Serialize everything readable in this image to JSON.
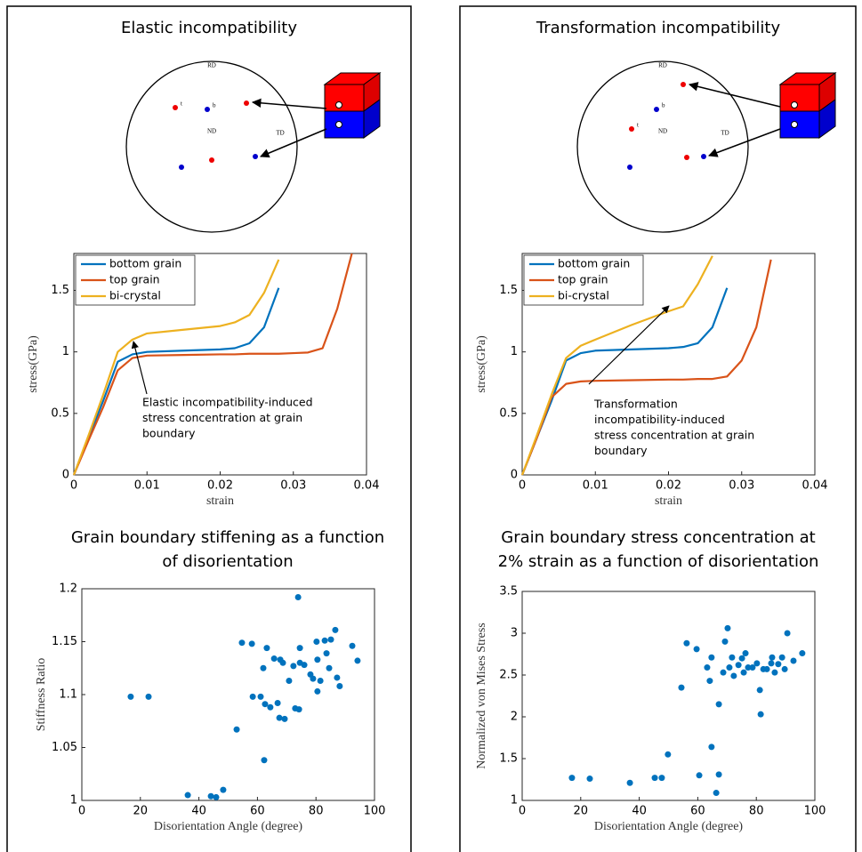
{
  "panels": [
    {
      "title": "Elastic incompatibility",
      "pole_figure": {
        "rd": "RD",
        "nd": "ND",
        "td": "TD",
        "bottom_label": "b",
        "top_label": "t"
      }
    },
    {
      "title": "Transformation incompatibility",
      "pole_figure": {
        "rd": "RD",
        "nd": "ND",
        "td": "TD",
        "bottom_label": "b",
        "top_label": "t"
      }
    }
  ],
  "chart_data": [
    {
      "type": "line",
      "xlabel": "strain",
      "ylabel": "stress(GPa)",
      "legend": "upper left",
      "xlim": [
        0,
        0.04
      ],
      "ylim": [
        0,
        1.8
      ],
      "xticks": [
        0,
        0.01,
        0.02,
        0.03,
        0.04
      ],
      "yticks": [
        0,
        0.5,
        1,
        1.5
      ],
      "x": [
        0,
        0.002,
        0.004,
        0.006,
        0.008,
        0.01,
        0.015,
        0.02,
        0.022,
        0.024,
        0.026,
        0.028,
        0.03,
        0.032,
        0.034,
        0.036,
        0.038
      ],
      "series": [
        {
          "name": "bottom grain",
          "color": "#0072BD",
          "values": [
            0,
            0.3,
            0.6,
            0.92,
            0.98,
            1.0,
            1.01,
            1.02,
            1.03,
            1.07,
            1.2,
            1.52,
            null,
            null,
            null,
            null,
            null
          ]
        },
        {
          "name": "top grain",
          "color": "#D95319",
          "values": [
            0,
            0.28,
            0.55,
            0.85,
            0.95,
            0.97,
            0.975,
            0.98,
            0.98,
            0.985,
            0.985,
            0.985,
            0.99,
            0.995,
            1.03,
            1.35,
            1.8
          ]
        },
        {
          "name": "bi-crystal",
          "color": "#EDB120",
          "values": [
            0,
            0.32,
            0.65,
            1.0,
            1.1,
            1.15,
            1.18,
            1.21,
            1.24,
            1.3,
            1.48,
            1.75,
            null,
            null,
            null,
            null,
            null
          ]
        }
      ],
      "annotation": [
        "Elastic incompatibility-induced",
        "stress concentration at grain",
        "boundary"
      ]
    },
    {
      "type": "scatter",
      "title": [
        "Grain boundary stiffening as a function",
        "of disorientation"
      ],
      "xlabel": "Disorientation Angle (degree)",
      "ylabel": "Stiffness Ratio",
      "color": "#0072BD",
      "xlim": [
        0,
        100
      ],
      "ylim": [
        1,
        1.2
      ],
      "xticks": [
        0,
        20,
        40,
        60,
        80,
        100
      ],
      "yticks": [
        1,
        1.05,
        1.1,
        1.15,
        1.2
      ],
      "x": [
        16.7,
        22.8,
        36.2,
        44.1,
        45.9,
        48.3,
        52.9,
        54.7,
        58.1,
        58.4,
        61.1,
        62.0,
        62.3,
        62.6,
        63.2,
        64.4,
        65.7,
        66.9,
        67.5,
        67.8,
        68.7,
        69.3,
        70.8,
        72.3,
        72.9,
        74.2,
        74.5,
        73.9,
        74.5,
        76.0,
        78.1,
        79.0,
        80.2,
        80.5,
        81.5,
        80.5,
        83.0,
        83.6,
        85.1,
        84.5,
        86.6,
        87.2,
        88.1,
        92.4,
        94.2
      ],
      "values": [
        1.098,
        1.098,
        1.005,
        1.004,
        1.003,
        1.01,
        1.067,
        1.149,
        1.148,
        1.098,
        1.098,
        1.125,
        1.038,
        1.091,
        1.144,
        1.088,
        1.134,
        1.092,
        1.078,
        1.133,
        1.13,
        1.077,
        1.113,
        1.127,
        1.087,
        1.086,
        1.13,
        1.192,
        1.144,
        1.128,
        1.119,
        1.115,
        1.15,
        1.133,
        1.113,
        1.103,
        1.151,
        1.139,
        1.152,
        1.125,
        1.161,
        1.116,
        1.108,
        1.146,
        1.132
      ]
    },
    {
      "type": "line",
      "xlabel": "strain",
      "ylabel": "stress(GPa)",
      "legend": "upper left",
      "xlim": [
        0,
        0.04
      ],
      "ylim": [
        0,
        1.8
      ],
      "xticks": [
        0,
        0.01,
        0.02,
        0.03,
        0.04
      ],
      "yticks": [
        0,
        0.5,
        1,
        1.5
      ],
      "x": [
        0,
        0.002,
        0.004,
        0.006,
        0.008,
        0.01,
        0.015,
        0.02,
        0.022,
        0.024,
        0.026,
        0.028,
        0.03,
        0.032,
        0.034,
        0.036,
        0.038
      ],
      "series": [
        {
          "name": "bottom grain",
          "color": "#0072BD",
          "values": [
            0,
            0.3,
            0.6,
            0.93,
            0.99,
            1.01,
            1.02,
            1.03,
            1.04,
            1.07,
            1.2,
            1.52,
            null,
            null,
            null,
            null,
            null
          ]
        },
        {
          "name": "top grain",
          "color": "#D95319",
          "values": [
            0,
            0.3,
            0.63,
            0.74,
            0.76,
            0.765,
            0.77,
            0.775,
            0.775,
            0.78,
            0.78,
            0.8,
            0.93,
            1.2,
            1.75,
            null,
            null
          ]
        },
        {
          "name": "bi-crystal",
          "color": "#EDB120",
          "values": [
            0,
            0.32,
            0.65,
            0.95,
            1.05,
            1.1,
            1.22,
            1.33,
            1.37,
            1.55,
            1.78,
            null,
            null,
            null,
            null,
            null,
            null
          ]
        }
      ],
      "annotation": [
        "Transformation",
        "incompatibility-induced",
        "stress concentration at grain",
        "boundary"
      ]
    },
    {
      "type": "scatter",
      "title": [
        "Grain boundary stress concentration at",
        "2% strain as a function of disorientation"
      ],
      "xlabel": "Disorientation Angle (degree)",
      "ylabel": "Normalized von Mises Stress",
      "color": "#0072BD",
      "xlim": [
        0,
        100
      ],
      "ylim": [
        1,
        3.5
      ],
      "xticks": [
        0,
        20,
        40,
        60,
        80,
        100
      ],
      "yticks": [
        1,
        1.5,
        2,
        2.5,
        3,
        3.5
      ],
      "x": [
        17.0,
        23.1,
        36.8,
        45.3,
        47.7,
        49.8,
        54.4,
        56.2,
        59.6,
        60.5,
        63.2,
        64.1,
        64.7,
        64.7,
        66.3,
        67.2,
        67.2,
        69.3,
        68.7,
        70.2,
        70.8,
        71.7,
        72.3,
        73.9,
        75.1,
        75.7,
        76.3,
        77.2,
        78.7,
        80.2,
        81.2,
        81.5,
        82.4,
        83.6,
        85.1,
        85.4,
        86.3,
        87.5,
        88.8,
        89.7,
        90.6,
        92.7,
        95.7
      ],
      "values": [
        1.27,
        1.26,
        1.21,
        1.27,
        1.27,
        1.55,
        2.35,
        2.88,
        2.81,
        1.3,
        2.59,
        2.43,
        1.64,
        2.71,
        1.09,
        2.15,
        1.31,
        2.9,
        2.53,
        3.06,
        2.59,
        2.71,
        2.49,
        2.62,
        2.7,
        2.53,
        2.76,
        2.59,
        2.59,
        2.64,
        2.32,
        2.03,
        2.57,
        2.57,
        2.64,
        2.71,
        2.53,
        2.63,
        2.71,
        2.57,
        3.0,
        2.67,
        2.76
      ]
    }
  ]
}
